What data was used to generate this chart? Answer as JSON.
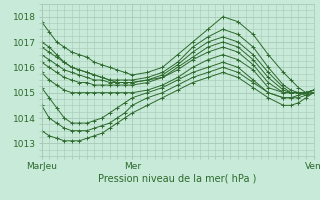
{
  "title": "Pression niveau de la mer( hPa )",
  "bg_color": "#c8ead8",
  "grid_color": "#a8c8b8",
  "line_color": "#2d6a2d",
  "marker": "+",
  "xlim": [
    0,
    72
  ],
  "ylim": [
    1012.5,
    1018.5
  ],
  "yticks": [
    1013,
    1014,
    1015,
    1016,
    1017,
    1018
  ],
  "xtick_positions": [
    0,
    24,
    48,
    72
  ],
  "xtick_labels": [
    "MarJeu",
    "Mer",
    "",
    "Ven"
  ],
  "lines": [
    {
      "x": [
        0,
        2,
        4,
        6,
        8,
        10,
        12,
        14,
        16,
        18,
        20,
        22,
        24,
        28,
        32,
        36,
        40,
        44,
        48,
        52,
        56,
        60,
        64,
        66,
        68,
        70,
        72
      ],
      "y": [
        1017.8,
        1017.4,
        1017.0,
        1016.8,
        1016.6,
        1016.5,
        1016.4,
        1016.2,
        1016.1,
        1016.0,
        1015.9,
        1015.8,
        1015.7,
        1015.8,
        1016.0,
        1016.5,
        1017.0,
        1017.5,
        1018.0,
        1017.8,
        1017.3,
        1016.5,
        1015.8,
        1015.5,
        1015.2,
        1015.0,
        1015.0
      ]
    },
    {
      "x": [
        0,
        2,
        4,
        6,
        8,
        10,
        12,
        14,
        16,
        18,
        20,
        22,
        24,
        28,
        32,
        36,
        40,
        44,
        48,
        52,
        56,
        60,
        64,
        66,
        68,
        70,
        72
      ],
      "y": [
        1017.0,
        1016.8,
        1016.5,
        1016.2,
        1016.0,
        1015.9,
        1015.8,
        1015.7,
        1015.6,
        1015.5,
        1015.5,
        1015.5,
        1015.5,
        1015.6,
        1015.8,
        1016.2,
        1016.8,
        1017.2,
        1017.5,
        1017.3,
        1016.8,
        1016.0,
        1015.3,
        1015.1,
        1015.0,
        1014.9,
        1015.0
      ]
    },
    {
      "x": [
        0,
        2,
        4,
        6,
        8,
        10,
        12,
        14,
        16,
        18,
        20,
        22,
        24,
        28,
        32,
        36,
        40,
        44,
        48,
        52,
        56,
        60,
        64,
        66,
        68,
        70,
        72
      ],
      "y": [
        1016.8,
        1016.6,
        1016.4,
        1016.2,
        1016.0,
        1015.9,
        1015.8,
        1015.7,
        1015.6,
        1015.5,
        1015.4,
        1015.4,
        1015.4,
        1015.5,
        1015.7,
        1016.1,
        1016.6,
        1017.0,
        1017.2,
        1017.0,
        1016.5,
        1015.8,
        1015.2,
        1015.0,
        1015.0,
        1015.0,
        1015.1
      ]
    },
    {
      "x": [
        0,
        2,
        4,
        6,
        8,
        10,
        12,
        14,
        16,
        18,
        20,
        22,
        24,
        28,
        32,
        36,
        40,
        44,
        48,
        52,
        56,
        60,
        64,
        66,
        68,
        70,
        72
      ],
      "y": [
        1016.5,
        1016.3,
        1016.1,
        1015.9,
        1015.8,
        1015.7,
        1015.6,
        1015.5,
        1015.5,
        1015.4,
        1015.4,
        1015.4,
        1015.4,
        1015.5,
        1015.6,
        1016.0,
        1016.4,
        1016.8,
        1017.0,
        1016.8,
        1016.3,
        1015.6,
        1015.1,
        1015.0,
        1015.0,
        1015.0,
        1015.1
      ]
    },
    {
      "x": [
        0,
        2,
        4,
        6,
        8,
        10,
        12,
        14,
        16,
        18,
        20,
        22,
        24,
        28,
        32,
        36,
        40,
        44,
        48,
        52,
        56,
        60,
        64,
        66,
        68,
        70,
        72
      ],
      "y": [
        1016.2,
        1016.0,
        1015.8,
        1015.6,
        1015.5,
        1015.4,
        1015.4,
        1015.3,
        1015.3,
        1015.3,
        1015.3,
        1015.3,
        1015.3,
        1015.4,
        1015.6,
        1015.9,
        1016.3,
        1016.6,
        1016.8,
        1016.6,
        1016.1,
        1015.4,
        1015.0,
        1015.0,
        1015.0,
        1015.0,
        1015.1
      ]
    },
    {
      "x": [
        0,
        2,
        4,
        6,
        8,
        10,
        12,
        14,
        16,
        18,
        20,
        22,
        24,
        28,
        32,
        36,
        40,
        44,
        48,
        52,
        56,
        60,
        64,
        66,
        68,
        70,
        72
      ],
      "y": [
        1015.8,
        1015.5,
        1015.3,
        1015.1,
        1015.0,
        1015.0,
        1015.0,
        1015.0,
        1015.0,
        1015.0,
        1015.0,
        1015.0,
        1015.0,
        1015.1,
        1015.3,
        1015.6,
        1016.0,
        1016.3,
        1016.5,
        1016.3,
        1015.9,
        1015.2,
        1015.0,
        1015.0,
        1015.0,
        1015.0,
        1015.1
      ]
    },
    {
      "x": [
        0,
        2,
        4,
        6,
        8,
        10,
        12,
        14,
        16,
        18,
        20,
        22,
        24,
        28,
        32,
        36,
        40,
        44,
        48,
        52,
        56,
        60,
        64,
        66,
        68,
        70,
        72
      ],
      "y": [
        1015.2,
        1014.8,
        1014.4,
        1014.0,
        1013.8,
        1013.8,
        1013.8,
        1013.9,
        1014.0,
        1014.2,
        1014.4,
        1014.6,
        1014.8,
        1015.0,
        1015.2,
        1015.5,
        1015.8,
        1016.0,
        1016.2,
        1016.0,
        1015.5,
        1015.0,
        1014.8,
        1014.8,
        1014.8,
        1014.9,
        1015.0
      ]
    },
    {
      "x": [
        0,
        2,
        4,
        6,
        8,
        10,
        12,
        14,
        16,
        18,
        20,
        22,
        24,
        28,
        32,
        36,
        40,
        44,
        48,
        52,
        56,
        60,
        64,
        66,
        68,
        70,
        72
      ],
      "y": [
        1014.5,
        1014.0,
        1013.8,
        1013.6,
        1013.5,
        1013.5,
        1013.5,
        1013.6,
        1013.7,
        1013.8,
        1014.0,
        1014.2,
        1014.5,
        1014.8,
        1015.0,
        1015.3,
        1015.6,
        1015.8,
        1016.0,
        1015.8,
        1015.4,
        1015.0,
        1014.8,
        1014.8,
        1014.9,
        1015.0,
        1015.1
      ]
    },
    {
      "x": [
        0,
        2,
        4,
        6,
        8,
        10,
        12,
        14,
        16,
        18,
        20,
        22,
        24,
        28,
        32,
        36,
        40,
        44,
        48,
        52,
        56,
        60,
        64,
        66,
        68,
        70,
        72
      ],
      "y": [
        1013.5,
        1013.3,
        1013.2,
        1013.1,
        1013.1,
        1013.1,
        1013.2,
        1013.3,
        1013.4,
        1013.6,
        1013.8,
        1014.0,
        1014.2,
        1014.5,
        1014.8,
        1015.1,
        1015.4,
        1015.6,
        1015.8,
        1015.6,
        1015.2,
        1014.8,
        1014.5,
        1014.5,
        1014.6,
        1014.8,
        1015.0
      ]
    }
  ]
}
